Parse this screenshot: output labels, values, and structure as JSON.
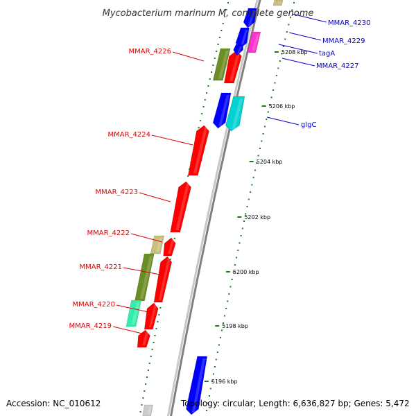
{
  "title": "Mycobacterium marinum M, complete genome",
  "accession": "Accession: NC_010612",
  "topology": "Topology: circular; Length: 6,636,827 bp; Genes: 5,472",
  "colors": {
    "backbone": "#808080",
    "forward_label": "#e00000",
    "reverse_label": "#0000cc",
    "tick": "#1a7a1a",
    "olive": "#6b8e23",
    "khaki": "#c8bf7a",
    "red": "#ff0000",
    "blue": "#0000ff",
    "cyan": "#00d2d2",
    "aqua": "#33eeaa",
    "magenta": "#ff33cc"
  },
  "ticks": [
    {
      "label": "5208 kbp"
    },
    {
      "label": "5206 kbp"
    },
    {
      "label": "5204 kbp"
    },
    {
      "label": "5202 kbp"
    },
    {
      "label": "5200 kbp"
    },
    {
      "label": "5198 kbp"
    },
    {
      "label": "5196 kbp"
    }
  ],
  "forward_genes": [
    {
      "label": "MMAR_4226"
    },
    {
      "label": "MMAR_4224"
    },
    {
      "label": "MMAR_4223"
    },
    {
      "label": "MMAR_4222"
    },
    {
      "label": "MMAR_4221"
    },
    {
      "label": "MMAR_4220"
    },
    {
      "label": "MMAR_4219"
    }
  ],
  "reverse_genes": [
    {
      "label": "MMAR_4230"
    },
    {
      "label": "MMAR_4229"
    },
    {
      "label": "tagA"
    },
    {
      "label": "MMAR_4227"
    },
    {
      "label": "glgC"
    }
  ]
}
